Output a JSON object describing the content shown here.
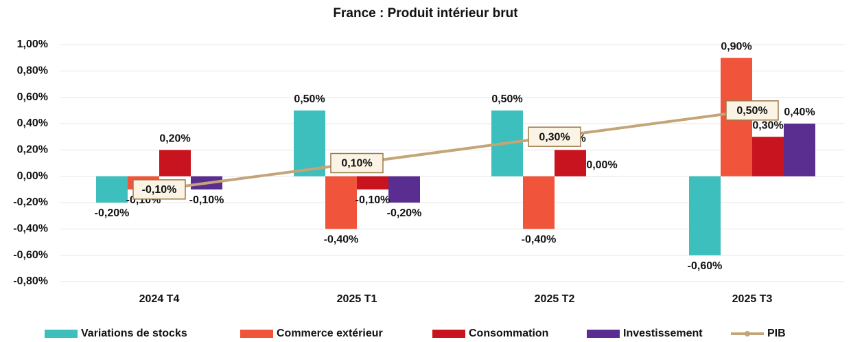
{
  "chart_data": {
    "type": "bar",
    "title": "France : Produit intérieur brut",
    "categories": [
      "2024 T4",
      "2025 T1",
      "2025 T2",
      "2025 T3"
    ],
    "series": [
      {
        "name": "Variations de stocks",
        "color": "#3dbfbd",
        "values": [
          -0.2,
          0.5,
          0.5,
          -0.6
        ],
        "value_labels": [
          "-0,20%",
          "0,50%",
          "0,50%",
          "-0,60%"
        ]
      },
      {
        "name": "Commerce extérieur",
        "color": "#f0553c",
        "values": [
          -0.1,
          -0.4,
          -0.4,
          0.9
        ],
        "value_labels": [
          "-0,10%",
          "-0,40%",
          "-0,40%",
          "0,90%"
        ]
      },
      {
        "name": "Consommation",
        "color": "#c8141e",
        "values": [
          0.2,
          -0.1,
          0.2,
          0.3
        ],
        "value_labels": [
          "0,20%",
          "-0,10%",
          "0,20%",
          "0,30%"
        ]
      },
      {
        "name": "Investissement",
        "color": "#5a2d91",
        "values": [
          -0.1,
          -0.2,
          0.0,
          0.4
        ],
        "value_labels": [
          "-0,10%",
          "-0,20%",
          "0,00%",
          "0,40%"
        ]
      },
      {
        "name": "PIB",
        "type": "line",
        "color": "#c4a578",
        "values": [
          -0.1,
          0.1,
          0.3,
          0.5
        ],
        "value_labels": [
          "-0,10%",
          "0,10%",
          "0,30%",
          "0,50%"
        ]
      }
    ],
    "ylim": [
      -0.8,
      1.0
    ],
    "yticks": [
      {
        "value": -0.8,
        "label": "-0,80%"
      },
      {
        "value": -0.6,
        "label": "-0,60%"
      },
      {
        "value": -0.4,
        "label": "-0,40%"
      },
      {
        "value": -0.2,
        "label": "-0,20%"
      },
      {
        "value": 0,
        "label": "0,00%"
      },
      {
        "value": 0.2,
        "label": "0,20%"
      },
      {
        "value": 0.4,
        "label": "0,40%"
      },
      {
        "value": 0.6,
        "label": "0,60%"
      },
      {
        "value": 0.8,
        "label": "0,80%"
      },
      {
        "value": 1.0,
        "label": "1,00%"
      }
    ],
    "grid": true,
    "legend": "bottom"
  }
}
